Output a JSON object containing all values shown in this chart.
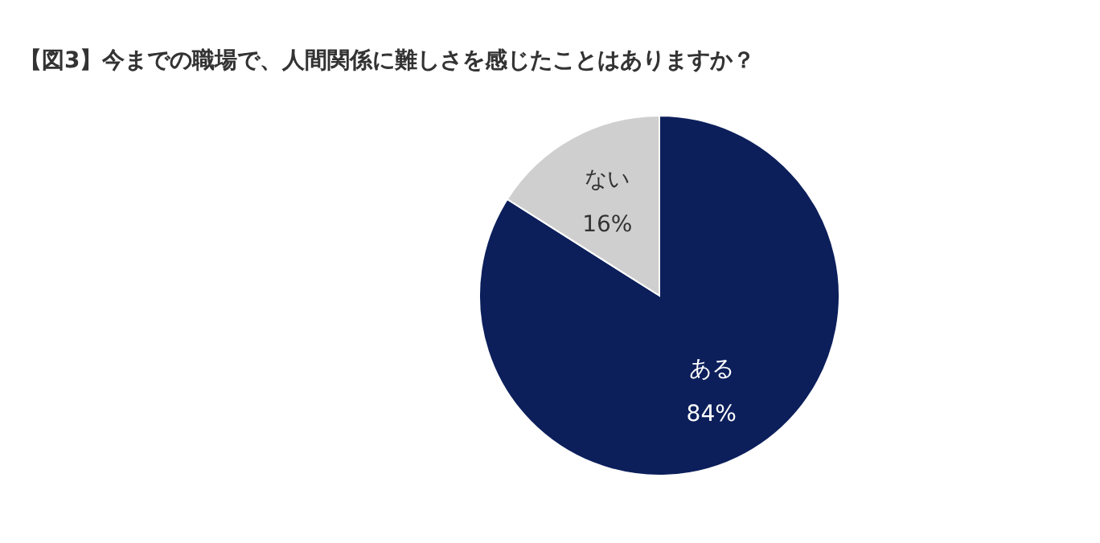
{
  "chart_data": {
    "type": "pie",
    "title": "【図3】今までの職場で、人間関係に難しさを感じたことはありますか？",
    "categories": [
      "ある",
      "ない"
    ],
    "values": [
      84,
      16
    ],
    "colors": [
      "#0c1f5b",
      "#d0cfcf"
    ],
    "value_labels": [
      "84%",
      "16%"
    ]
  }
}
